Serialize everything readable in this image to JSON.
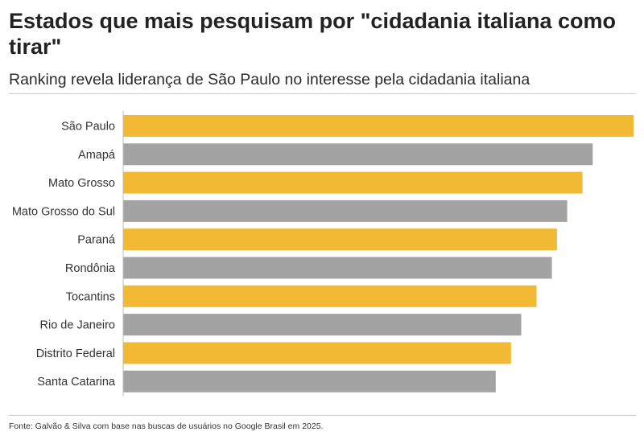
{
  "header": {
    "title": "Estados que mais pesquisam por \"cidadania italiana como tirar\"",
    "subtitle": "Ranking revela liderança de São Paulo no interesse pela cidadania italiana"
  },
  "footer": {
    "source": "Fonte: Galvão & Silva com base nas buscas de usuários no Google Brasil em 2025."
  },
  "colors": {
    "highlight": "#f2b935",
    "neutral": "#a3a3a3",
    "axis": "#bdbdbd"
  },
  "chart_data": {
    "type": "bar",
    "orientation": "horizontal",
    "categories": [
      "São Paulo",
      "Amapá",
      "Mato Grosso",
      "Mato Grosso do Sul",
      "Paraná",
      "Rondônia",
      "Tocantins",
      "Rio de Janeiro",
      "Distrito Federal",
      "Santa Catarina"
    ],
    "values": [
      100,
      92,
      90,
      87,
      85,
      84,
      81,
      78,
      76,
      73
    ],
    "bar_colors": [
      "highlight",
      "neutral",
      "highlight",
      "neutral",
      "highlight",
      "neutral",
      "highlight",
      "neutral",
      "highlight",
      "neutral"
    ],
    "xlim": [
      0,
      100
    ],
    "grid": false,
    "legend": "none"
  }
}
